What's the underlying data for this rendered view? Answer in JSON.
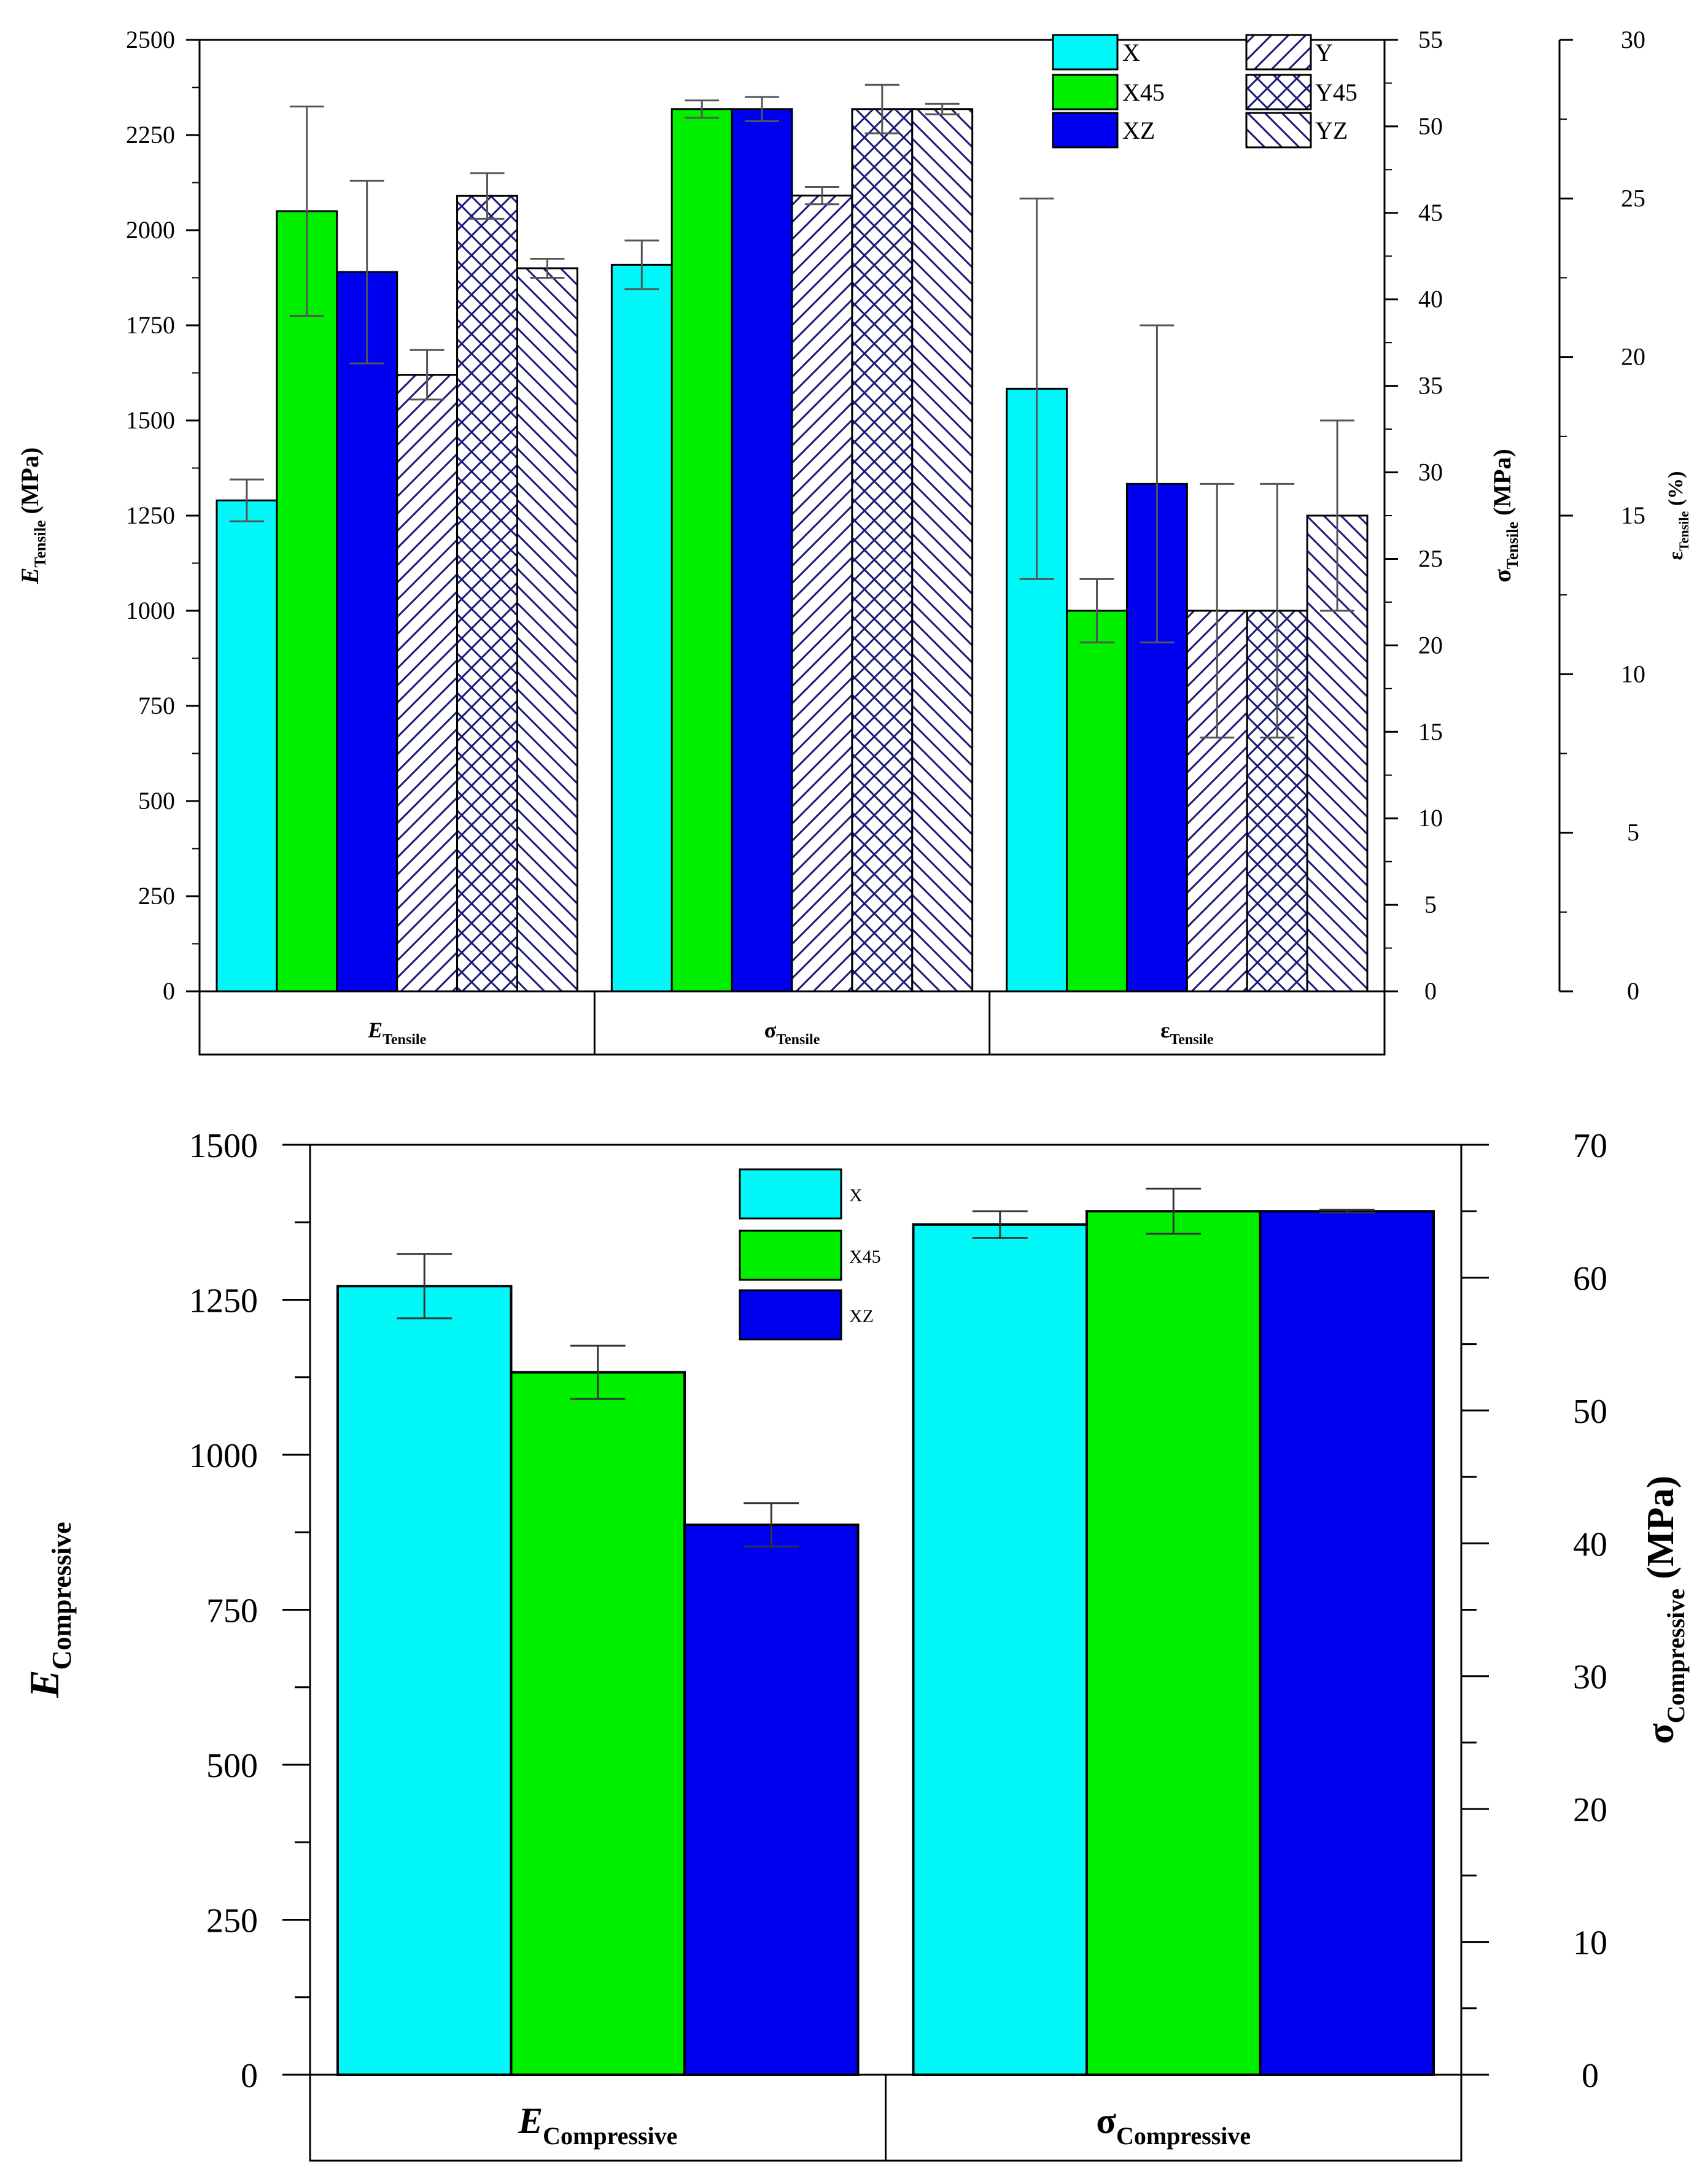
{
  "colors": {
    "X": "#00f8f8",
    "X45": "#00f000",
    "XZ": "#0000f0",
    "hatch": "#1a1a7a",
    "hatch_bg": "#ffffff"
  },
  "chart_data": [
    {
      "type": "bar",
      "title": "",
      "groups": [
        {
          "label_main": "E",
          "label_sub": "Tensile",
          "axis": "left"
        },
        {
          "label_main": "σ",
          "label_sub": "Tensile",
          "axis": "right1"
        },
        {
          "label_main": "ε",
          "label_sub": "Tensile",
          "axis": "right2"
        }
      ],
      "series": [
        {
          "name": "X",
          "fill": "X",
          "hatch": "none",
          "values": [
            1290,
            42.0,
            19.0
          ],
          "errors": [
            55,
            1.4,
            6.0
          ]
        },
        {
          "name": "X45",
          "fill": "X45",
          "hatch": "none",
          "values": [
            2050,
            51.0,
            12.0
          ],
          "errors": [
            275,
            0.5,
            1.0
          ]
        },
        {
          "name": "XZ",
          "fill": "XZ",
          "hatch": "none",
          "values": [
            1890,
            51.0,
            16.0
          ],
          "errors": [
            240,
            0.7,
            5.0
          ]
        },
        {
          "name": "Y",
          "fill": "hatch_bg",
          "hatch": "back-diag",
          "values": [
            1620,
            46.0,
            12.0
          ],
          "errors": [
            65,
            0.5,
            4.0
          ]
        },
        {
          "name": "Y45",
          "fill": "hatch_bg",
          "hatch": "cross",
          "values": [
            2090,
            51.0,
            12.0
          ],
          "errors": [
            60,
            1.4,
            4.0
          ]
        },
        {
          "name": "YZ",
          "fill": "hatch_bg",
          "hatch": "fwd-diag",
          "values": [
            1900,
            51.0,
            15.0
          ],
          "errors": [
            25,
            0.3,
            3.0
          ]
        }
      ],
      "axes": {
        "left": {
          "label_main": "E",
          "label_sub": "Tensile",
          "label_unit": " (MPa)",
          "ylim": [
            0,
            2500
          ],
          "ticks": [
            "0",
            "250",
            "500",
            "750",
            "1000",
            "1250",
            "1500",
            "1750",
            "2000",
            "2250",
            "2500"
          ]
        },
        "right1": {
          "label_main": "σ",
          "label_sub": "Tensile",
          "label_unit": " (MPa)",
          "ylim": [
            0,
            55
          ],
          "ticks": [
            "0",
            "5",
            "10",
            "15",
            "20",
            "25",
            "30",
            "35",
            "40",
            "45",
            "50",
            "55"
          ]
        },
        "right2": {
          "label_main": "ε",
          "label_sub": "Tensile",
          "label_unit": " (%)",
          "ylim": [
            0,
            30
          ],
          "ticks": [
            "0",
            "5",
            "10",
            "15",
            "20",
            "25",
            "30"
          ]
        }
      },
      "legend": {
        "position": "top-right",
        "entries": [
          "X",
          "Y",
          "X45",
          "Y45",
          "XZ",
          "YZ"
        ]
      }
    },
    {
      "type": "bar",
      "title": "",
      "groups": [
        {
          "label_main": "E",
          "label_sub": "Compressive",
          "axis": "left"
        },
        {
          "label_main": "σ",
          "label_sub": "Compressive",
          "axis": "right"
        }
      ],
      "series": [
        {
          "name": "X",
          "fill": "X",
          "values": [
            1272,
            64.0
          ],
          "errors": [
            52,
            1.0
          ]
        },
        {
          "name": "X45",
          "fill": "X45",
          "values": [
            1133,
            65.0
          ],
          "errors": [
            43,
            1.7
          ]
        },
        {
          "name": "XZ",
          "fill": "XZ",
          "values": [
            887,
            65.0
          ],
          "errors": [
            35,
            0.1
          ]
        }
      ],
      "axes": {
        "left": {
          "label_main": "E",
          "label_sub": "Compressive",
          "label_unit": "",
          "ylim": [
            0,
            1500
          ],
          "ticks": [
            "0",
            "250",
            "500",
            "750",
            "1000",
            "1250",
            "1500"
          ]
        },
        "right": {
          "label_main": "σ",
          "label_sub": "Compressive",
          "label_unit": " (MPa)",
          "ylim": [
            0,
            70
          ],
          "ticks": [
            "0",
            "10",
            "20",
            "30",
            "40",
            "50",
            "60",
            "70"
          ]
        }
      },
      "legend": {
        "position": "top-left",
        "entries": [
          "X",
          "X45",
          "XZ"
        ]
      }
    }
  ]
}
